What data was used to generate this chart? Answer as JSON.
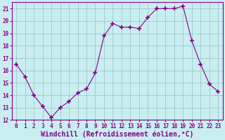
{
  "x": [
    0,
    1,
    2,
    3,
    4,
    5,
    6,
    7,
    8,
    9,
    10,
    11,
    12,
    13,
    14,
    15,
    16,
    17,
    18,
    19,
    20,
    21,
    22,
    23
  ],
  "y": [
    16.5,
    15.5,
    14.0,
    13.1,
    12.2,
    13.0,
    13.5,
    14.2,
    14.5,
    15.8,
    18.8,
    19.8,
    19.5,
    19.5,
    19.4,
    20.3,
    21.0,
    21.0,
    21.0,
    21.2,
    18.4,
    16.5,
    14.9,
    14.3
  ],
  "line_color": "#880088",
  "marker": "+",
  "marker_size": 4,
  "bg_color": "#c8eef0",
  "grid_color": "#a0c8c8",
  "xlabel": "Windchill (Refroidissement éolien,°C)",
  "xlim_min": -0.5,
  "xlim_max": 23.5,
  "ylim_min": 12,
  "ylim_max": 21.5,
  "yticks": [
    12,
    13,
    14,
    15,
    16,
    17,
    18,
    19,
    20,
    21
  ],
  "xticks": [
    0,
    1,
    2,
    3,
    4,
    5,
    6,
    7,
    8,
    9,
    10,
    11,
    12,
    13,
    14,
    15,
    16,
    17,
    18,
    19,
    20,
    21,
    22,
    23
  ],
  "tick_fontsize": 5.5,
  "xlabel_fontsize": 7.0,
  "tick_color": "#880088",
  "spine_color": "#880088"
}
